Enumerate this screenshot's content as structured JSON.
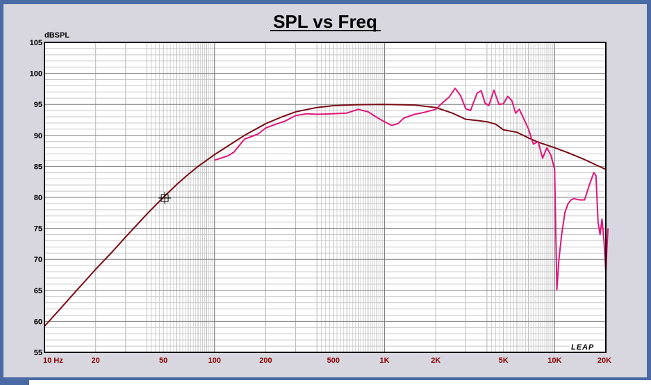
{
  "chart_data": {
    "type": "line",
    "title": "SPL vs Freq",
    "ylabel": "dBSPL",
    "xlabel": "",
    "xscale": "log",
    "xlim": [
      10,
      20000
    ],
    "ylim": [
      55,
      105
    ],
    "grid": true,
    "y_ticks": [
      "105",
      "100",
      "95",
      "90",
      "85",
      "80",
      "75",
      "70",
      "65",
      "60",
      "55"
    ],
    "x_ticks": [
      {
        "value": 10,
        "label": "10 Hz"
      },
      {
        "value": 20,
        "label": "20"
      },
      {
        "value": 50,
        "label": "50"
      },
      {
        "value": 100,
        "label": "100"
      },
      {
        "value": 200,
        "label": "200"
      },
      {
        "value": 500,
        "label": "500"
      },
      {
        "value": 1000,
        "label": "1K"
      },
      {
        "value": 2000,
        "label": "2K"
      },
      {
        "value": 5000,
        "label": "5K"
      },
      {
        "value": 10000,
        "label": "10K"
      },
      {
        "value": 20000,
        "label": "20K"
      }
    ],
    "brand_label": "LEAP",
    "cursor_marker": {
      "x": 50,
      "y": 80
    },
    "series": [
      {
        "color": "#7a0a14",
        "points": [
          [
            10,
            59.2
          ],
          [
            12,
            61.6
          ],
          [
            15,
            64.6
          ],
          [
            18,
            67
          ],
          [
            20,
            68.4
          ],
          [
            25,
            71.2
          ],
          [
            30,
            73.6
          ],
          [
            40,
            77.3
          ],
          [
            50,
            80.0
          ],
          [
            60,
            82.1
          ],
          [
            70,
            83.7
          ],
          [
            80,
            85.0
          ],
          [
            100,
            86.9
          ],
          [
            120,
            88.3
          ],
          [
            150,
            90.0
          ],
          [
            200,
            91.9
          ],
          [
            250,
            93.0
          ],
          [
            300,
            93.8
          ],
          [
            400,
            94.5
          ],
          [
            500,
            94.8
          ],
          [
            700,
            94.95
          ],
          [
            1000,
            95.0
          ],
          [
            1500,
            94.9
          ],
          [
            2000,
            94.5
          ],
          [
            2500,
            93.6
          ],
          [
            3000,
            92.6
          ],
          [
            3500,
            92.4
          ],
          [
            4000,
            92.2
          ],
          [
            4500,
            91.8
          ],
          [
            5000,
            90.9
          ],
          [
            6000,
            90.5
          ],
          [
            7000,
            89.6
          ],
          [
            8000,
            88.9
          ],
          [
            10000,
            88.0
          ],
          [
            12000,
            87.2
          ],
          [
            15000,
            86.1
          ],
          [
            20000,
            84.5
          ]
        ]
      },
      {
        "color": "#e0157a",
        "points": [
          [
            100,
            86.0
          ],
          [
            120,
            86.7
          ],
          [
            130,
            87.3
          ],
          [
            150,
            89.4
          ],
          [
            180,
            90.2
          ],
          [
            200,
            91.2
          ],
          [
            230,
            91.8
          ],
          [
            260,
            92.3
          ],
          [
            300,
            93.2
          ],
          [
            350,
            93.5
          ],
          [
            400,
            93.4
          ],
          [
            500,
            93.5
          ],
          [
            600,
            93.6
          ],
          [
            700,
            94.2
          ],
          [
            800,
            93.8
          ],
          [
            900,
            92.9
          ],
          [
            1000,
            92.2
          ],
          [
            1100,
            91.6
          ],
          [
            1200,
            91.9
          ],
          [
            1300,
            92.8
          ],
          [
            1500,
            93.4
          ],
          [
            1700,
            93.7
          ],
          [
            2000,
            94.2
          ],
          [
            2200,
            95.3
          ],
          [
            2400,
            96.2
          ],
          [
            2600,
            97.6
          ],
          [
            2800,
            96.4
          ],
          [
            3000,
            94.3
          ],
          [
            3200,
            94.0
          ],
          [
            3500,
            96.8
          ],
          [
            3700,
            97.2
          ],
          [
            3900,
            95.2
          ],
          [
            4100,
            94.8
          ],
          [
            4400,
            97.3
          ],
          [
            4700,
            95.0
          ],
          [
            5000,
            95.1
          ],
          [
            5300,
            96.3
          ],
          [
            5600,
            95.6
          ],
          [
            5900,
            93.6
          ],
          [
            6200,
            94.2
          ],
          [
            6500,
            93.0
          ],
          [
            7000,
            91.1
          ],
          [
            7500,
            88.6
          ],
          [
            8000,
            89.0
          ],
          [
            8500,
            86.3
          ],
          [
            9000,
            88.0
          ],
          [
            9500,
            86.8
          ],
          [
            10000,
            84.5
          ],
          [
            10300,
            65.1
          ],
          [
            10600,
            70.0
          ],
          [
            11000,
            74.0
          ],
          [
            11500,
            77.6
          ],
          [
            12000,
            79.0
          ],
          [
            12500,
            79.6
          ],
          [
            13000,
            79.8
          ],
          [
            14000,
            79.6
          ],
          [
            15000,
            79.6
          ],
          [
            16000,
            82.0
          ],
          [
            17000,
            84.0
          ],
          [
            17500,
            83.5
          ],
          [
            18000,
            76.0
          ],
          [
            18500,
            74.0
          ],
          [
            19000,
            76.5
          ],
          [
            19500,
            73.0
          ],
          [
            20000,
            67.8
          ],
          [
            20300,
            72.0
          ],
          [
            20600,
            75.0
          ]
        ]
      }
    ]
  }
}
